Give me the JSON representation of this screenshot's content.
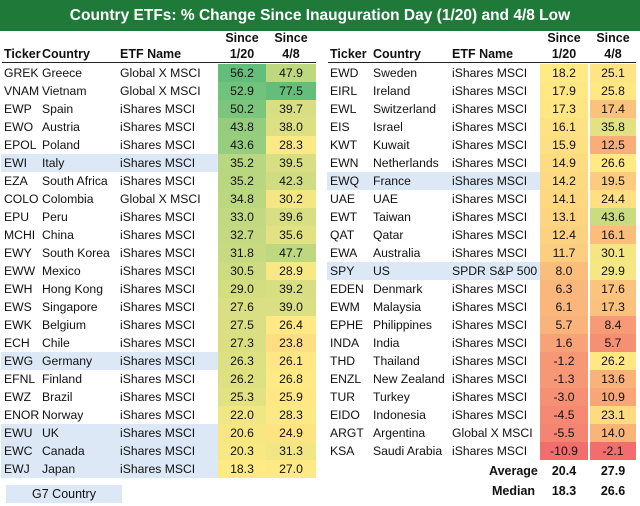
{
  "title": "Country ETFs: % Change Since Inauguration Day (1/20) and 4/8 Low",
  "headers": {
    "ticker": "Ticker",
    "country": "Country",
    "etf": "ETF Name",
    "since1_top": "Since",
    "since1_bottom": "1/20",
    "since2_top": "Since",
    "since2_bottom": "4/8"
  },
  "colors": {
    "banner": "#1f7a3a",
    "g7": "#dce8f6"
  },
  "legend": "G7 Country",
  "stats": {
    "average_label": "Average",
    "median_label": "Median",
    "average_1_20": "20.4",
    "average_4_8": "27.9",
    "median_1_20": "18.3",
    "median_4_8": "26.6"
  },
  "chart_data": {
    "type": "table",
    "title": "Country ETFs: % Change Since Inauguration Day (1/20) and 4/8 Low",
    "columns": [
      "Ticker",
      "Country",
      "ETF Name",
      "Since 1/20",
      "Since 4/8"
    ],
    "rows": [
      {
        "ticker": "GREK",
        "country": "Greece",
        "etf": "Global X MSCI",
        "since_1_20": "56.2",
        "since_4_8": "47.9",
        "g7": false
      },
      {
        "ticker": "VNAM",
        "country": "Vietnam",
        "etf": "Global X MSCI",
        "since_1_20": "52.9",
        "since_4_8": "77.5",
        "g7": false
      },
      {
        "ticker": "EWP",
        "country": "Spain",
        "etf": "iShares MSCI",
        "since_1_20": "50.2",
        "since_4_8": "39.7",
        "g7": false
      },
      {
        "ticker": "EWO",
        "country": "Austria",
        "etf": "iShares MSCI",
        "since_1_20": "43.8",
        "since_4_8": "38.0",
        "g7": false
      },
      {
        "ticker": "EPOL",
        "country": "Poland",
        "etf": "iShares MSCI",
        "since_1_20": "43.6",
        "since_4_8": "28.3",
        "g7": false
      },
      {
        "ticker": "EWI",
        "country": "Italy",
        "etf": "iShares MSCI",
        "since_1_20": "35.2",
        "since_4_8": "39.5",
        "g7": true
      },
      {
        "ticker": "EZA",
        "country": "South Africa",
        "etf": "iShares MSCI",
        "since_1_20": "35.2",
        "since_4_8": "42.3",
        "g7": false
      },
      {
        "ticker": "COLO",
        "country": "Colombia",
        "etf": "Global X MSCI",
        "since_1_20": "34.8",
        "since_4_8": "30.2",
        "g7": false
      },
      {
        "ticker": "EPU",
        "country": "Peru",
        "etf": "iShares MSCI",
        "since_1_20": "33.0",
        "since_4_8": "39.6",
        "g7": false
      },
      {
        "ticker": "MCHI",
        "country": "China",
        "etf": "iShares MSCI",
        "since_1_20": "32.7",
        "since_4_8": "35.6",
        "g7": false
      },
      {
        "ticker": "EWY",
        "country": "South Korea",
        "etf": "iShares MSCI",
        "since_1_20": "31.8",
        "since_4_8": "47.7",
        "g7": false
      },
      {
        "ticker": "EWW",
        "country": "Mexico",
        "etf": "iShares MSCI",
        "since_1_20": "30.5",
        "since_4_8": "28.9",
        "g7": false
      },
      {
        "ticker": "EWH",
        "country": "Hong Kong",
        "etf": "iShares MSCI",
        "since_1_20": "29.0",
        "since_4_8": "39.2",
        "g7": false
      },
      {
        "ticker": "EWS",
        "country": "Singapore",
        "etf": "iShares MSCI",
        "since_1_20": "27.6",
        "since_4_8": "39.0",
        "g7": false
      },
      {
        "ticker": "EWK",
        "country": "Belgium",
        "etf": "iShares MSCI",
        "since_1_20": "27.5",
        "since_4_8": "26.4",
        "g7": false
      },
      {
        "ticker": "ECH",
        "country": "Chile",
        "etf": "iShares MSCI",
        "since_1_20": "27.3",
        "since_4_8": "23.8",
        "g7": false
      },
      {
        "ticker": "EWG",
        "country": "Germany",
        "etf": "iShares MSCI",
        "since_1_20": "26.3",
        "since_4_8": "26.1",
        "g7": true
      },
      {
        "ticker": "EFNL",
        "country": "Finland",
        "etf": "iShares MSCI",
        "since_1_20": "26.2",
        "since_4_8": "26.8",
        "g7": false
      },
      {
        "ticker": "EWZ",
        "country": "Brazil",
        "etf": "iShares MSCI",
        "since_1_20": "25.3",
        "since_4_8": "25.9",
        "g7": false
      },
      {
        "ticker": "ENOR",
        "country": "Norway",
        "etf": "iShares MSCI",
        "since_1_20": "22.0",
        "since_4_8": "28.3",
        "g7": false
      },
      {
        "ticker": "EWU",
        "country": "UK",
        "etf": "iShares MSCI",
        "since_1_20": "20.6",
        "since_4_8": "24.9",
        "g7": true
      },
      {
        "ticker": "EWC",
        "country": "Canada",
        "etf": "iShares MSCI",
        "since_1_20": "20.3",
        "since_4_8": "31.3",
        "g7": true
      },
      {
        "ticker": "EWJ",
        "country": "Japan",
        "etf": "iShares MSCI",
        "since_1_20": "18.3",
        "since_4_8": "27.0",
        "g7": true
      },
      {
        "ticker": "EWD",
        "country": "Sweden",
        "etf": "iShares MSCI",
        "since_1_20": "18.2",
        "since_4_8": "25.1",
        "g7": false
      },
      {
        "ticker": "EIRL",
        "country": "Ireland",
        "etf": "iShares MSCI",
        "since_1_20": "17.9",
        "since_4_8": "25.8",
        "g7": false
      },
      {
        "ticker": "EWL",
        "country": "Switzerland",
        "etf": "iShares MSCI",
        "since_1_20": "17.3",
        "since_4_8": "17.4",
        "g7": false
      },
      {
        "ticker": "EIS",
        "country": "Israel",
        "etf": "iShares MSCI",
        "since_1_20": "16.1",
        "since_4_8": "35.8",
        "g7": false
      },
      {
        "ticker": "KWT",
        "country": "Kuwait",
        "etf": "iShares MSCI",
        "since_1_20": "15.9",
        "since_4_8": "12.5",
        "g7": false
      },
      {
        "ticker": "EWN",
        "country": "Netherlands",
        "etf": "iShares MSCI",
        "since_1_20": "14.9",
        "since_4_8": "26.6",
        "g7": false
      },
      {
        "ticker": "EWQ",
        "country": "France",
        "etf": "iShares MSCI",
        "since_1_20": "14.2",
        "since_4_8": "19.5",
        "g7": true
      },
      {
        "ticker": "UAE",
        "country": "UAE",
        "etf": "iShares MSCI",
        "since_1_20": "14.1",
        "since_4_8": "24.4",
        "g7": false
      },
      {
        "ticker": "EWT",
        "country": "Taiwan",
        "etf": "iShares MSCI",
        "since_1_20": "13.1",
        "since_4_8": "43.6",
        "g7": false
      },
      {
        "ticker": "QAT",
        "country": "Qatar",
        "etf": "iShares MSCI",
        "since_1_20": "12.4",
        "since_4_8": "16.1",
        "g7": false
      },
      {
        "ticker": "EWA",
        "country": "Australia",
        "etf": "iShares MSCI",
        "since_1_20": "11.7",
        "since_4_8": "30.1",
        "g7": false
      },
      {
        "ticker": "SPY",
        "country": "US",
        "etf": "SPDR S&P 500",
        "since_1_20": "8.0",
        "since_4_8": "29.9",
        "g7": true
      },
      {
        "ticker": "EDEN",
        "country": "Denmark",
        "etf": "iShares MSCI",
        "since_1_20": "6.3",
        "since_4_8": "17.6",
        "g7": false
      },
      {
        "ticker": "EWM",
        "country": "Malaysia",
        "etf": "iShares MSCI",
        "since_1_20": "6.1",
        "since_4_8": "17.3",
        "g7": false
      },
      {
        "ticker": "EPHE",
        "country": "Philippines",
        "etf": "iShares MSCI",
        "since_1_20": "5.7",
        "since_4_8": "8.4",
        "g7": false
      },
      {
        "ticker": "INDA",
        "country": "India",
        "etf": "iShares MSCI",
        "since_1_20": "1.6",
        "since_4_8": "5.7",
        "g7": false
      },
      {
        "ticker": "THD",
        "country": "Thailand",
        "etf": "iShares MSCI",
        "since_1_20": "-1.2",
        "since_4_8": "26.2",
        "g7": false
      },
      {
        "ticker": "ENZL",
        "country": "New Zealand",
        "etf": "iShares MSCI",
        "since_1_20": "-1.3",
        "since_4_8": "13.6",
        "g7": false
      },
      {
        "ticker": "TUR",
        "country": "Turkey",
        "etf": "iShares MSCI",
        "since_1_20": "-3.0",
        "since_4_8": "10.9",
        "g7": false
      },
      {
        "ticker": "EIDO",
        "country": "Indonesia",
        "etf": "iShares MSCI",
        "since_1_20": "-4.5",
        "since_4_8": "23.1",
        "g7": false
      },
      {
        "ticker": "ARGT",
        "country": "Argentina",
        "etf": "Global X MSCI",
        "since_1_20": "-5.5",
        "since_4_8": "14.0",
        "g7": false
      },
      {
        "ticker": "KSA",
        "country": "Saudi Arabia",
        "etf": "iShares MSCI",
        "since_1_20": "-10.9",
        "since_4_8": "-2.1",
        "g7": false
      }
    ]
  }
}
